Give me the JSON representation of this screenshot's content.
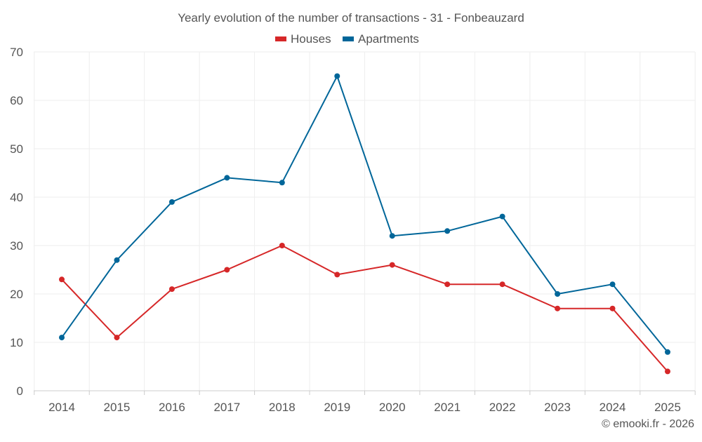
{
  "chart_data": {
    "type": "line",
    "title": "Yearly evolution of the number of transactions - 31 - Fonbeauzard",
    "categories": [
      "2014",
      "2015",
      "2016",
      "2017",
      "2018",
      "2019",
      "2020",
      "2021",
      "2022",
      "2023",
      "2024",
      "2025"
    ],
    "series": [
      {
        "name": "Houses",
        "color": "#d62728",
        "values": [
          23,
          11,
          21,
          25,
          30,
          24,
          26,
          22,
          22,
          17,
          17,
          4
        ]
      },
      {
        "name": "Apartments",
        "color": "#006699",
        "values": [
          11,
          27,
          39,
          44,
          43,
          65,
          32,
          33,
          36,
          20,
          22,
          8
        ]
      }
    ],
    "yticks": [
      0,
      10,
      20,
      30,
      40,
      50,
      60,
      70
    ],
    "ylim": [
      0,
      70
    ],
    "xlabel": "",
    "ylabel": "",
    "grid": true,
    "legend_position": "top-center",
    "credit": "© emooki.fr - 2026"
  },
  "colors": {
    "text": "#555555",
    "grid": "#eeeeee",
    "axis": "#cccccc"
  }
}
